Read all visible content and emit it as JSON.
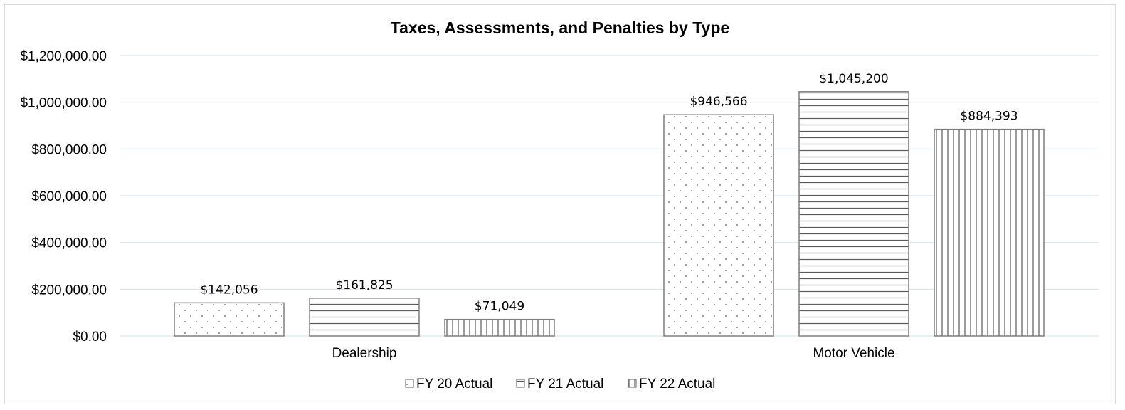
{
  "chart_data": {
    "type": "bar",
    "title": "Taxes, Assessments, and Penalties by Type",
    "categories": [
      "Dealership",
      "Motor Vehicle"
    ],
    "series": [
      {
        "name": "FY 20 Actual",
        "values": [
          142056,
          946566
        ],
        "labels": [
          "$142,056",
          "$946,566"
        ],
        "pattern": "dots"
      },
      {
        "name": "FY 21 Actual",
        "values": [
          161825,
          1045200
        ],
        "labels": [
          "$161,825",
          "$1,045,200"
        ],
        "pattern": "horizontal-lines"
      },
      {
        "name": "FY 22 Actual",
        "values": [
          71049,
          884393
        ],
        "labels": [
          "$71,049",
          "$884,393"
        ],
        "pattern": "vertical-lines"
      }
    ],
    "y_ticks": [
      "$0.00",
      "$200,000.00",
      "$400,000.00",
      "$600,000.00",
      "$800,000.00",
      "$1,000,000.00",
      "$1,200,000.00"
    ],
    "ylim": [
      0,
      1200000
    ],
    "grid": true,
    "legend_position": "bottom",
    "colors": {
      "gridline": "#d6e3f0",
      "bar_stroke": "#7f7f7f",
      "pattern": "#595959"
    }
  }
}
